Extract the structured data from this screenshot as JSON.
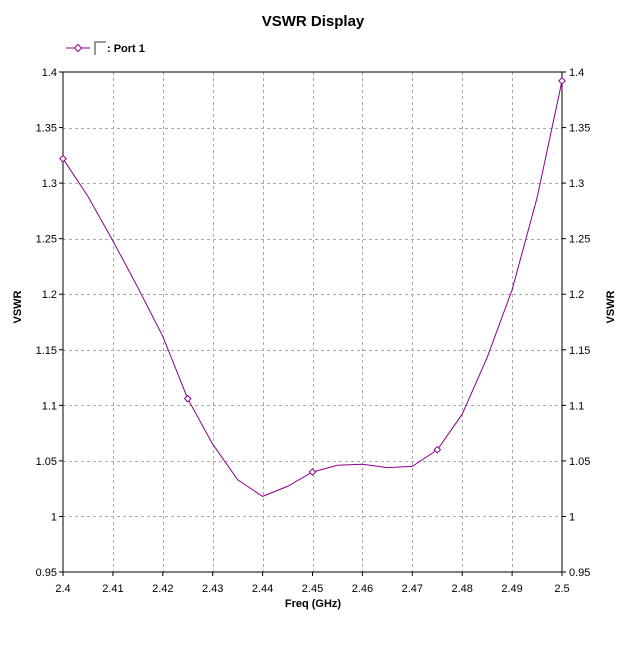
{
  "chart_data": {
    "type": "line",
    "title": "VSWR Display",
    "xlabel": "Freq (GHz)",
    "ylabel": "VSWR",
    "ylabel_right": "VSWR",
    "xlim": [
      2.4,
      2.5
    ],
    "ylim": [
      0.95,
      1.4
    ],
    "xticks": [
      2.4,
      2.41,
      2.42,
      2.43,
      2.44,
      2.45,
      2.46,
      2.47,
      2.48,
      2.49,
      2.5
    ],
    "xtick_labels": [
      "2.4",
      "2.41",
      "2.42",
      "2.43",
      "2.44",
      "2.45",
      "2.46",
      "2.47",
      "2.48",
      "2.49",
      "2.5"
    ],
    "yticks": [
      0.95,
      1,
      1.05,
      1.1,
      1.15,
      1.2,
      1.25,
      1.3,
      1.35,
      1.4
    ],
    "ytick_labels": [
      "0.95",
      "1",
      "1.05",
      "1.1",
      "1.15",
      "1.2",
      "1.25",
      "1.3",
      "1.35",
      "1.4"
    ],
    "grid": true,
    "legend_position": "top-left",
    "series": [
      {
        "name": ": Port 1",
        "color": "#8b008b",
        "marker": "diamond",
        "x": [
          2.4,
          2.405,
          2.41,
          2.415,
          2.42,
          2.425,
          2.43,
          2.435,
          2.44,
          2.445,
          2.45,
          2.455,
          2.46,
          2.465,
          2.47,
          2.475,
          2.48,
          2.485,
          2.49,
          2.495,
          2.5
        ],
        "y": [
          1.322,
          1.288,
          1.248,
          1.206,
          1.162,
          1.106,
          1.065,
          1.033,
          1.018,
          1.027,
          1.04,
          1.046,
          1.047,
          1.044,
          1.045,
          1.06,
          1.092,
          1.143,
          1.204,
          1.287,
          1.392
        ],
        "marker_x": [
          2.4,
          2.425,
          2.45,
          2.475,
          2.5
        ],
        "marker_y": [
          1.322,
          1.106,
          1.04,
          1.06,
          1.392
        ]
      }
    ]
  }
}
